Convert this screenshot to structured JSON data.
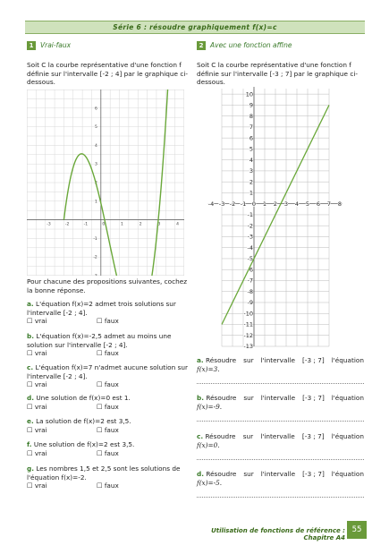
{
  "header": {
    "title": "Série 6 : résoudre graphiquement f(x)=c"
  },
  "section1": {
    "number": "1",
    "title": "Vrai-faux",
    "intro_l1": "Soit C la courbe représentative d'une fonction f",
    "intro_l2": "définie sur l'intervalle [-2 ; 4] par le graphique ci-",
    "intro_l3": "dessous.",
    "prompt_l1": "Pour chacune des propositions suivantes, cochez",
    "prompt_l2": "la bonne réponse.",
    "vrai": "☐ vrai",
    "faux": "☐ faux",
    "questions": [
      {
        "label": "a.",
        "l1": "L'équation f(x)=2 admet trois solutions sur",
        "l2": "l'intervalle [-2 ; 4]."
      },
      {
        "label": "b.",
        "l1": "L'équation f(x)=-2,5 admet au moins une",
        "l2": "solution sur l'intervalle [-2 ; 4]."
      },
      {
        "label": "c.",
        "l1": "L'équation f(x)=7 n'admet aucune solution sur",
        "l2": "l'intervalle [-2 ; 4]."
      },
      {
        "label": "d.",
        "l1": "Une solution de f(x)=0 est 1.",
        "l2": ""
      },
      {
        "label": "e.",
        "l1": "La solution de f(x)=2 est 3,5.",
        "l2": ""
      },
      {
        "label": "f.",
        "l1": "Une solution de f(x)=2 est 3,5.",
        "l2": ""
      },
      {
        "label": "g.",
        "l1": "Les nombres 1,5 et 2,5 sont les solutions de",
        "l2": "l'équation f(x)=-2."
      }
    ]
  },
  "section2": {
    "number": "2",
    "title": "Avec une fonction affine",
    "intro_l1": "Soit C la courbe représentative d'une fonction f",
    "intro_l2": "définie sur l'intervalle [-3 ; 7] par le graphique ci-",
    "intro_l3": "dessous.",
    "questions": [
      {
        "label": "a.",
        "w1": "Résoudre",
        "w2": "sur",
        "w3": "l'intervalle",
        "w4": "[-3 ; 7]",
        "w5": "l'équation",
        "eq": "f(x)=3."
      },
      {
        "label": "b.",
        "w1": "Résoudre",
        "w2": "sur",
        "w3": "l'intervalle",
        "w4": "[-3 ; 7]",
        "w5": "l'équation",
        "eq": "f(x)=-9."
      },
      {
        "label": "c.",
        "w1": "Résoudre",
        "w2": "sur",
        "w3": "l'intervalle",
        "w4": "[-3 ; 7]",
        "w5": "l'équation",
        "eq": "f(x)=0."
      },
      {
        "label": "d.",
        "w1": "Résoudre",
        "w2": "sur",
        "w3": "l'intervalle",
        "w4": "[-3 ; 7]",
        "w5": "l'équation",
        "eq": "f(x)=-5."
      }
    ]
  },
  "graph1": {
    "x_ticks": [
      "-3",
      "-2",
      "-1",
      "0",
      "1",
      "2",
      "3",
      "4"
    ],
    "y_ticks": [
      "-3",
      "-2",
      "-1",
      "1",
      "2",
      "3",
      "4",
      "5",
      "6"
    ],
    "curve_color": "#6aa83a"
  },
  "graph2": {
    "x_ticks": [
      "-4",
      "-3",
      "-2",
      "-1",
      "0",
      "1",
      "2",
      "3",
      "4",
      "5",
      "6",
      "7",
      "8"
    ],
    "y_ticks": [
      "10",
      "9",
      "8",
      "7",
      "6",
      "5",
      "4",
      "3",
      "2",
      "1",
      "-1",
      "-2",
      "-3",
      "-4",
      "-5",
      "-6",
      "-7",
      "-8",
      "-9",
      "-10",
      "-11",
      "-12",
      "-13"
    ],
    "line_color": "#6aa83a",
    "line_from": [
      -3,
      -11
    ],
    "line_to": [
      7,
      9
    ]
  },
  "footer": {
    "text": "Utilisation de fonctions de référence : Chapitre A4",
    "page": "55"
  }
}
